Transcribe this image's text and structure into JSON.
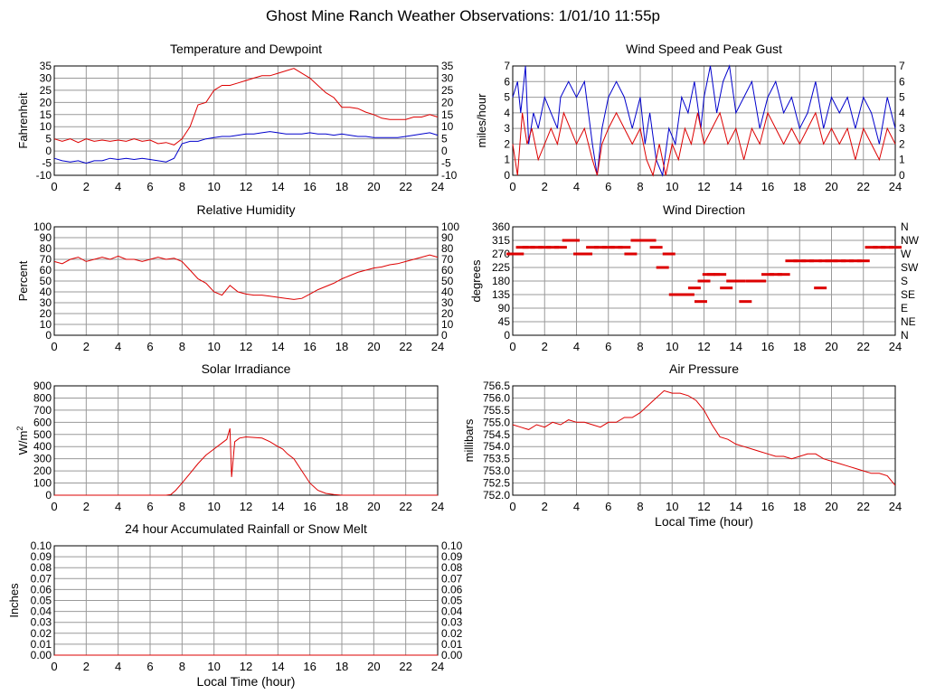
{
  "page_title": "Ghost Mine Ranch Weather Observations: 1/01/10 11:55p",
  "colors": {
    "temperature": "#dd0000",
    "dewpoint": "#0000cc",
    "grid": "#999999"
  },
  "chart_data": [
    {
      "id": "temp",
      "type": "line",
      "title": "Temperature and Dewpoint",
      "ylabel": "Fahrenheit",
      "xlabel": "",
      "xlim": [
        0,
        24
      ],
      "ylim": [
        -10,
        35
      ],
      "x_ticks": [
        0,
        2,
        4,
        6,
        8,
        10,
        12,
        14,
        16,
        18,
        20,
        22,
        24
      ],
      "y_ticks": [
        -10,
        -5,
        0,
        5,
        10,
        15,
        20,
        25,
        30,
        35
      ],
      "right_axis_labels": true,
      "grid": true,
      "series": [
        {
          "color": "#dd0000",
          "x": [
            0,
            0.5,
            1,
            1.5,
            2,
            2.5,
            3,
            3.5,
            4,
            4.5,
            5,
            5.5,
            6,
            6.5,
            7,
            7.5,
            8,
            8.5,
            9,
            9.5,
            10,
            10.5,
            11,
            11.5,
            12,
            12.5,
            13,
            13.5,
            14,
            14.5,
            15,
            15.5,
            16,
            16.5,
            17,
            17.5,
            18,
            18.5,
            19,
            19.5,
            20,
            20.5,
            21,
            21.5,
            22,
            22.5,
            23,
            23.5,
            24
          ],
          "y": [
            5,
            4,
            5,
            3.5,
            5,
            4,
            4.5,
            4,
            4.5,
            4,
            5,
            4,
            4.5,
            3,
            3.5,
            2.5,
            5,
            10,
            19,
            20,
            25,
            27,
            27,
            28,
            29,
            30,
            31,
            31,
            32,
            33,
            34,
            32,
            30,
            27,
            24,
            22,
            18,
            18,
            17.5,
            16,
            15,
            13.5,
            13,
            13,
            13,
            14,
            14,
            15,
            14
          ]
        },
        {
          "color": "#0000cc",
          "x": [
            0,
            0.5,
            1,
            1.5,
            2,
            2.5,
            3,
            3.5,
            4,
            4.5,
            5,
            5.5,
            6,
            6.5,
            7,
            7.5,
            8,
            8.5,
            9,
            9.5,
            10,
            10.5,
            11,
            11.5,
            12,
            12.5,
            13,
            13.5,
            14,
            14.5,
            15,
            15.5,
            16,
            16.5,
            17,
            17.5,
            18,
            18.5,
            19,
            19.5,
            20,
            20.5,
            21,
            21.5,
            22,
            22.5,
            23,
            23.5,
            24
          ],
          "y": [
            -3,
            -4,
            -4.5,
            -4,
            -5,
            -4,
            -4,
            -3,
            -3.5,
            -3,
            -3.5,
            -3,
            -3.5,
            -4,
            -4.5,
            -3,
            3,
            4,
            4,
            5,
            5.5,
            6,
            6,
            6.5,
            7,
            7,
            7.5,
            8,
            7.5,
            7,
            7,
            7,
            7.5,
            7,
            7,
            6.5,
            7,
            6.5,
            6,
            6,
            5.5,
            5.5,
            5.5,
            5.5,
            6,
            6.5,
            7,
            7.5,
            6.5
          ]
        }
      ]
    },
    {
      "id": "wind",
      "type": "line",
      "title": "Wind Speed and Peak Gust",
      "ylabel": "miles/hour",
      "xlabel": "",
      "xlim": [
        0,
        24
      ],
      "ylim": [
        0,
        7
      ],
      "x_ticks": [
        0,
        2,
        4,
        6,
        8,
        10,
        12,
        14,
        16,
        18,
        20,
        22,
        24
      ],
      "y_ticks": [
        0,
        1,
        2,
        3,
        4,
        5,
        6,
        7
      ],
      "right_axis_labels": true,
      "grid": true,
      "series": [
        {
          "color": "#0000cc",
          "x": [
            0,
            0.3,
            0.5,
            0.8,
            1,
            1.3,
            1.6,
            2,
            2.4,
            2.8,
            3,
            3.5,
            4,
            4.5,
            5,
            5.3,
            5.6,
            6,
            6.5,
            7,
            7.5,
            8,
            8.3,
            8.6,
            9,
            9.4,
            9.8,
            10.2,
            10.6,
            11,
            11.4,
            11.8,
            12,
            12.4,
            12.8,
            13.2,
            13.6,
            14,
            14.5,
            15,
            15.5,
            16,
            16.5,
            17,
            17.5,
            18,
            18.5,
            19,
            19.5,
            20,
            20.5,
            21,
            21.5,
            22,
            22.5,
            23,
            23.5,
            24
          ],
          "y": [
            5,
            6,
            4,
            7,
            2,
            4,
            3,
            5,
            4,
            3,
            5,
            6,
            5,
            6,
            2,
            0,
            3,
            5,
            6,
            5,
            3,
            5,
            2,
            4,
            1,
            0,
            3,
            2,
            5,
            4,
            6,
            3,
            5,
            7,
            4,
            6,
            7,
            4,
            5,
            6,
            3,
            5,
            6,
            4,
            5,
            3,
            4,
            6,
            3,
            5,
            4,
            5,
            3,
            5,
            4,
            2,
            5,
            3
          ]
        },
        {
          "color": "#dd0000",
          "x": [
            0,
            0.3,
            0.6,
            0.9,
            1.2,
            1.6,
            2,
            2.4,
            2.8,
            3.2,
            3.6,
            4,
            4.5,
            5,
            5.3,
            5.6,
            6,
            6.5,
            7,
            7.5,
            8,
            8.4,
            8.8,
            9.2,
            9.6,
            10,
            10.4,
            10.8,
            11.2,
            11.6,
            12,
            12.5,
            13,
            13.5,
            14,
            14.5,
            15,
            15.5,
            16,
            16.5,
            17,
            17.5,
            18,
            18.5,
            19,
            19.5,
            20,
            20.5,
            21,
            21.5,
            22,
            22.5,
            23,
            23.5,
            24
          ],
          "y": [
            2,
            0,
            4,
            2,
            3,
            1,
            2,
            3,
            2,
            4,
            3,
            2,
            3,
            1,
            0,
            2,
            3,
            4,
            3,
            2,
            3,
            1,
            0,
            2,
            0,
            2,
            1,
            3,
            2,
            4,
            2,
            3,
            4,
            2,
            3,
            1,
            3,
            2,
            4,
            3,
            2,
            3,
            2,
            3,
            4,
            2,
            3,
            2,
            3,
            1,
            3,
            2,
            1,
            3,
            2
          ]
        }
      ]
    },
    {
      "id": "humidity",
      "type": "line",
      "title": "Relative Humidity",
      "ylabel": "Percent",
      "xlabel": "",
      "xlim": [
        0,
        24
      ],
      "ylim": [
        0,
        100
      ],
      "x_ticks": [
        0,
        2,
        4,
        6,
        8,
        10,
        12,
        14,
        16,
        18,
        20,
        22,
        24
      ],
      "y_ticks": [
        0,
        10,
        20,
        30,
        40,
        50,
        60,
        70,
        80,
        90,
        100
      ],
      "right_axis_labels": true,
      "grid": true,
      "series": [
        {
          "color": "#dd0000",
          "x": [
            0,
            0.5,
            1,
            1.5,
            2,
            2.5,
            3,
            3.5,
            4,
            4.5,
            5,
            5.5,
            6,
            6.5,
            7,
            7.5,
            8,
            8.5,
            9,
            9.5,
            10,
            10.5,
            11,
            11.5,
            12,
            12.5,
            13,
            13.5,
            14,
            14.5,
            15,
            15.5,
            16,
            16.5,
            17,
            17.5,
            18,
            18.5,
            19,
            19.5,
            20,
            20.5,
            21,
            21.5,
            22,
            22.5,
            23,
            23.5,
            24
          ],
          "y": [
            68,
            66,
            70,
            72,
            68,
            70,
            72,
            70,
            73,
            70,
            70,
            68,
            70,
            72,
            70,
            71,
            68,
            60,
            52,
            48,
            40,
            37,
            46,
            40,
            38,
            37,
            37,
            36,
            35,
            34,
            33,
            34,
            38,
            42,
            45,
            48,
            52,
            55,
            58,
            60,
            62,
            63,
            65,
            66,
            68,
            70,
            72,
            74,
            72
          ]
        }
      ]
    },
    {
      "id": "direction",
      "type": "scatter",
      "title": "Wind Direction",
      "ylabel": "degrees",
      "xlabel": "",
      "xlim": [
        0,
        24
      ],
      "ylim": [
        0,
        360
      ],
      "x_ticks": [
        0,
        2,
        4,
        6,
        8,
        10,
        12,
        14,
        16,
        18,
        20,
        22,
        24
      ],
      "y_ticks": [
        0,
        45,
        90,
        135,
        180,
        225,
        270,
        315,
        360
      ],
      "right_tick_labels": [
        "N",
        "NE",
        "E",
        "SE",
        "S",
        "SW",
        "W",
        "NW",
        "N"
      ],
      "grid": true,
      "series": [
        {
          "color": "#dd0000",
          "x": [
            0,
            0.3,
            0.6,
            1,
            1.5,
            2,
            2.5,
            3,
            3.5,
            3.8,
            4.2,
            4.6,
            5,
            5.5,
            6,
            6.5,
            7,
            7.4,
            7.8,
            8.2,
            8.6,
            9,
            9.4,
            9.8,
            10.2,
            10.6,
            11,
            11.4,
            11.8,
            12,
            12.3,
            12.6,
            13,
            13.4,
            13.8,
            14.2,
            14.6,
            15,
            15.5,
            16,
            16.5,
            17,
            17.5,
            18,
            18.5,
            19,
            19.3,
            19.6,
            20,
            20.5,
            21,
            21.5,
            22,
            22.5,
            23,
            23.5,
            24
          ],
          "y": [
            270,
            270,
            292,
            292,
            292,
            292,
            292,
            292,
            315,
            315,
            270,
            270,
            292,
            292,
            292,
            292,
            292,
            270,
            315,
            315,
            315,
            292,
            225,
            270,
            135,
            135,
            135,
            157,
            112,
            180,
            202,
            202,
            202,
            157,
            180,
            180,
            112,
            180,
            180,
            202,
            202,
            202,
            247,
            247,
            247,
            247,
            157,
            247,
            247,
            247,
            247,
            247,
            247,
            292,
            292,
            292,
            292
          ]
        }
      ]
    },
    {
      "id": "solar",
      "type": "line",
      "title": "Solar Irradiance",
      "ylabel": "W/m²",
      "xlabel": "",
      "xlim": [
        0,
        24
      ],
      "ylim": [
        0,
        900
      ],
      "x_ticks": [
        0,
        2,
        4,
        6,
        8,
        10,
        12,
        14,
        16,
        18,
        20,
        22,
        24
      ],
      "y_ticks": [
        0,
        100,
        200,
        300,
        400,
        500,
        600,
        700,
        800,
        900
      ],
      "right_axis_labels": false,
      "grid": true,
      "series": [
        {
          "color": "#dd0000",
          "x": [
            0,
            1,
            2,
            3,
            4,
            5,
            6,
            7,
            7.3,
            7.6,
            8,
            8.5,
            9,
            9.5,
            10,
            10.5,
            10.8,
            11,
            11.1,
            11.3,
            11.6,
            12,
            12.5,
            13,
            13.5,
            14,
            14.3,
            14.6,
            15,
            15.5,
            16,
            16.5,
            17,
            17.5,
            18,
            19,
            20,
            21,
            22,
            23,
            24
          ],
          "y": [
            0,
            0,
            0,
            0,
            0,
            0,
            0,
            0,
            5,
            40,
            100,
            180,
            260,
            330,
            380,
            430,
            460,
            550,
            150,
            440,
            470,
            480,
            475,
            470,
            440,
            400,
            380,
            340,
            300,
            200,
            100,
            40,
            15,
            5,
            0,
            0,
            0,
            0,
            0,
            0,
            0
          ]
        }
      ]
    },
    {
      "id": "pressure",
      "type": "line",
      "title": "Air Pressure",
      "ylabel": "millibars",
      "xlabel": "Local Time (hour)",
      "xlim": [
        0,
        24
      ],
      "ylim": [
        752.0,
        756.5
      ],
      "x_ticks": [
        0,
        2,
        4,
        6,
        8,
        10,
        12,
        14,
        16,
        18,
        20,
        22,
        24
      ],
      "y_ticks": [
        752.0,
        752.5,
        753.0,
        753.5,
        754.0,
        754.5,
        755.0,
        755.5,
        756.0,
        756.5
      ],
      "right_axis_labels": false,
      "grid": true,
      "series": [
        {
          "color": "#dd0000",
          "x": [
            0,
            0.5,
            1,
            1.5,
            2,
            2.5,
            3,
            3.5,
            4,
            4.5,
            5,
            5.5,
            6,
            6.5,
            7,
            7.5,
            8,
            8.5,
            9,
            9.5,
            10,
            10.5,
            11,
            11.5,
            12,
            12.5,
            13,
            13.5,
            14,
            14.5,
            15,
            15.5,
            16,
            16.5,
            17,
            17.5,
            18,
            18.5,
            19,
            19.5,
            20,
            20.5,
            21,
            21.5,
            22,
            22.5,
            23,
            23.5,
            24
          ],
          "y": [
            754.9,
            754.8,
            754.7,
            754.9,
            754.8,
            755.0,
            754.9,
            755.1,
            755.0,
            755.0,
            754.9,
            754.8,
            755.0,
            755.0,
            755.2,
            755.2,
            755.4,
            755.7,
            756.0,
            756.3,
            756.2,
            756.2,
            756.1,
            755.9,
            755.5,
            754.9,
            754.4,
            754.3,
            754.1,
            754.0,
            753.9,
            753.8,
            753.7,
            753.6,
            753.6,
            753.5,
            753.6,
            753.7,
            753.7,
            753.5,
            753.4,
            753.3,
            753.2,
            753.1,
            753.0,
            752.9,
            752.9,
            752.8,
            752.4
          ]
        }
      ]
    },
    {
      "id": "rain",
      "type": "line",
      "title": "24 hour Accumulated Rainfall or Snow Melt",
      "ylabel": "Inches",
      "xlabel": "Local Time (hour)",
      "xlim": [
        0,
        24
      ],
      "ylim": [
        0,
        0.1
      ],
      "x_ticks": [
        0,
        2,
        4,
        6,
        8,
        10,
        12,
        14,
        16,
        18,
        20,
        22,
        24
      ],
      "y_ticks": [
        "0.00",
        "0.01",
        "0.02",
        "0.03",
        "0.04",
        "0.05",
        "0.06",
        "0.07",
        "0.08",
        "0.09",
        "0.10"
      ],
      "right_axis_labels": true,
      "grid": true,
      "series": [
        {
          "color": "#dd0000",
          "x": [
            0,
            24
          ],
          "y": [
            0,
            0
          ]
        }
      ]
    }
  ]
}
